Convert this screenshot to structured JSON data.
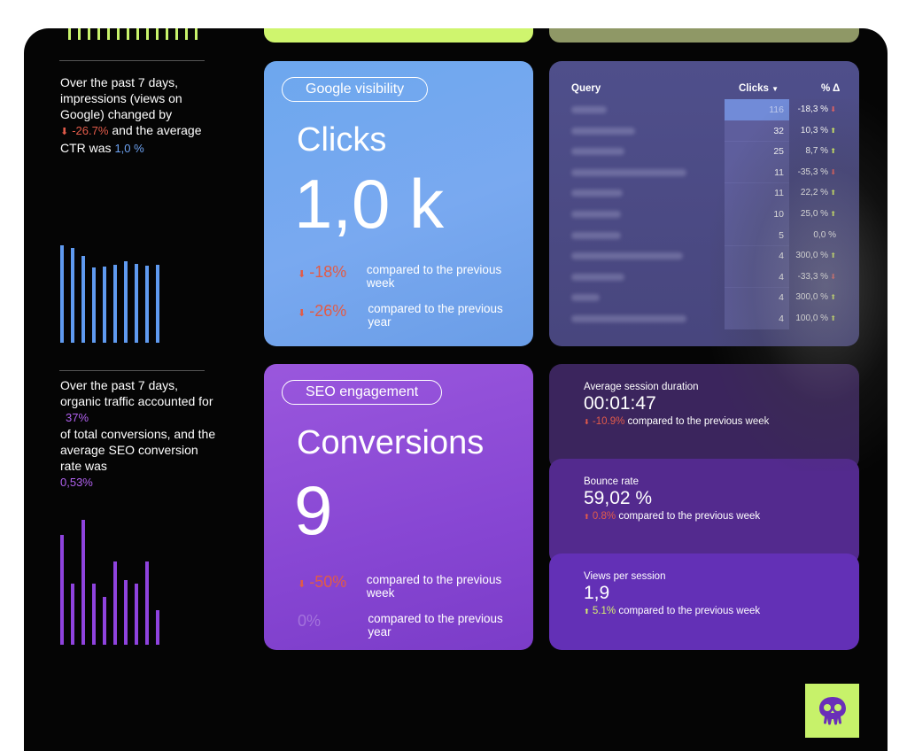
{
  "left_panel": {
    "block1": {
      "line1": "Over the past 7 days, impressions (views on Google) changed by",
      "impressions_delta": "-26.7%",
      "mid": "and the average CTR was",
      "ctr": "1,0 %",
      "bars": [
        100,
        97,
        89,
        77,
        78,
        80,
        84,
        81,
        79,
        80
      ]
    },
    "block2": {
      "line1": "Over the past 7 days, organic traffic accounted for",
      "share": "37%",
      "mid": "of total conversions, and the average SEO conversion rate was",
      "rate": "0,53%",
      "bars": [
        88,
        49,
        100,
        49,
        38,
        67,
        52,
        49,
        67,
        28
      ]
    }
  },
  "google_card": {
    "pill": "Google visibility",
    "title": "Clicks",
    "value": "1,0 k",
    "week_delta": "-18%",
    "week_text": "compared to the previous week",
    "year_delta": "-26%",
    "year_text": "compared to the previous year"
  },
  "seo_card": {
    "pill": "SEO engagement",
    "title": "Conversions",
    "value": "9",
    "week_delta": "-50%",
    "week_text": "compared to the previous week",
    "year_delta": "0%",
    "year_text": "compared to the previous year"
  },
  "query_table": {
    "headers": {
      "query": "Query",
      "clicks": "Clicks",
      "pct": "% Δ"
    },
    "rows": [
      {
        "clicks": "116",
        "pct": "-18,3 %",
        "dir": "down"
      },
      {
        "clicks": "32",
        "pct": "10,3 %",
        "dir": "up"
      },
      {
        "clicks": "25",
        "pct": "8,7 %",
        "dir": "up"
      },
      {
        "clicks": "11",
        "pct": "-35,3 %",
        "dir": "down"
      },
      {
        "clicks": "11",
        "pct": "22,2 %",
        "dir": "up"
      },
      {
        "clicks": "10",
        "pct": "25,0 %",
        "dir": "up"
      },
      {
        "clicks": "5",
        "pct": "0,0 %",
        "dir": "none"
      },
      {
        "clicks": "4",
        "pct": "300,0 %",
        "dir": "up"
      },
      {
        "clicks": "4",
        "pct": "-33,3 %",
        "dir": "down"
      },
      {
        "clicks": "4",
        "pct": "300,0 %",
        "dir": "up"
      },
      {
        "clicks": "4",
        "pct": "100,0 %",
        "dir": "up"
      }
    ]
  },
  "session_stats": [
    {
      "label": "Average session duration",
      "value": "00:01:47",
      "delta": "-10.9%",
      "dir": "down",
      "text": "compared to the previous week"
    },
    {
      "label": "Bounce rate",
      "value": "59,02 %",
      "delta": "0.8%",
      "dir": "up_bad",
      "text": "compared to the previous week"
    },
    {
      "label": "Views per session",
      "value": "1,9",
      "delta": "5.1%",
      "dir": "up",
      "text": "compared to the previous week"
    }
  ],
  "colors": {
    "accent_green": "#c7f26a",
    "blue": "#6ea4f4",
    "purple": "#8746d3",
    "negative": "#e25b46",
    "icon_purple": "#6a2fb8"
  },
  "icons": {
    "logo": "skull-octopus-logo-icon",
    "arrow_down": "down-arrow-icon",
    "arrow_up": "up-arrow-icon",
    "sort": "sort-desc-icon"
  }
}
